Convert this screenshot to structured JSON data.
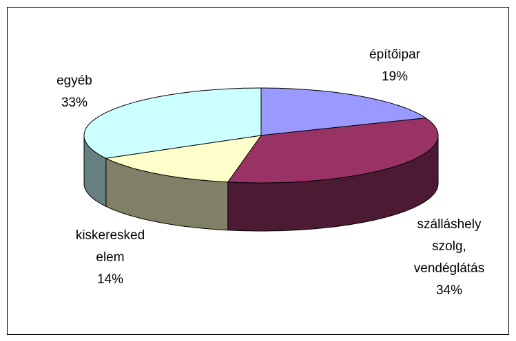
{
  "chart_data": {
    "type": "pie",
    "three_d": true,
    "categories": [
      "építőipar",
      "szálláshely\nszolg,\nvendéglátás",
      "kiskeresked\nelem",
      "egyéb"
    ],
    "values": [
      19,
      34,
      14,
      33
    ],
    "value_labels": [
      "19%",
      "34%",
      "14%",
      "33%"
    ],
    "colors": [
      "#9999ff",
      "#993366",
      "#ffffcc",
      "#ccffff"
    ],
    "start_angle": 0,
    "direction": "clockwise"
  }
}
